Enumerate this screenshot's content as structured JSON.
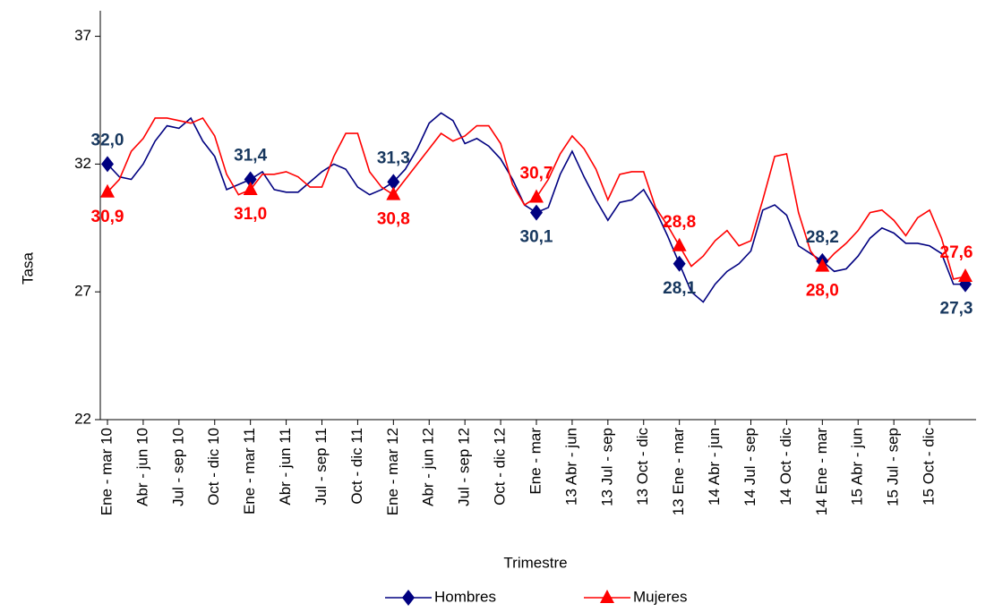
{
  "chart_data": {
    "type": "line",
    "x_label": "Trimestre",
    "y_label": "Tasa",
    "categories": [
      "Ene - mar 10",
      null,
      null,
      "Abr - jun 10",
      null,
      null,
      "Jul - sep 10",
      null,
      null,
      "Oct - dic 10",
      null,
      null,
      "Ene - mar 11",
      null,
      null,
      "Abr - jun 11",
      null,
      null,
      "Jul - sep 11",
      null,
      null,
      "Oct - dic 11",
      null,
      null,
      "Ene - mar 12",
      null,
      null,
      "Abr - jun 12",
      null,
      null,
      "Jul - sep 12",
      null,
      null,
      "Oct - dic 12",
      null,
      null,
      "Ene - mar",
      null,
      null,
      "13 Abr - jun",
      null,
      null,
      "13 Jul - sep",
      null,
      null,
      "13 Oct - dic",
      null,
      null,
      "13 Ene - mar",
      null,
      null,
      "14 Abr - jun",
      null,
      null,
      "14 Jul - sep",
      null,
      null,
      "14 Oct - dic",
      null,
      null,
      "14 Ene - mar",
      null,
      null,
      "15 Abr - jun",
      null,
      null,
      "15 Jul - sep",
      null,
      null,
      "15 Oct - dic",
      null,
      null,
      null
    ],
    "series": [
      {
        "name": "Hombres",
        "color": "#000080",
        "marker": "diamond",
        "values": [
          32.0,
          31.5,
          31.4,
          32.0,
          32.9,
          33.5,
          33.4,
          33.8,
          32.9,
          32.3,
          31.0,
          31.2,
          31.4,
          31.7,
          31.0,
          30.9,
          30.9,
          31.3,
          31.7,
          32.0,
          31.8,
          31.1,
          30.8,
          31.0,
          31.3,
          31.8,
          32.6,
          33.6,
          34.0,
          33.7,
          32.8,
          33.0,
          32.7,
          32.2,
          31.4,
          30.4,
          30.1,
          30.3,
          31.6,
          32.5,
          31.5,
          30.6,
          29.8,
          30.5,
          30.6,
          31.0,
          30.2,
          29.2,
          28.1,
          27.0,
          26.6,
          27.3,
          27.8,
          28.1,
          28.6,
          30.2,
          30.4,
          30.0,
          28.8,
          28.5,
          28.2,
          27.8,
          27.9,
          28.4,
          29.1,
          29.5,
          29.3,
          28.9,
          28.9,
          28.8,
          28.5,
          27.3,
          27.3
        ],
        "value_labels": [
          "32,0",
          null,
          null,
          null,
          null,
          null,
          null,
          null,
          null,
          null,
          null,
          null,
          "31,4",
          null,
          null,
          null,
          null,
          null,
          null,
          null,
          null,
          null,
          null,
          null,
          "31,3",
          null,
          null,
          null,
          null,
          null,
          null,
          null,
          null,
          null,
          null,
          null,
          "30,1",
          null,
          null,
          null,
          null,
          null,
          null,
          null,
          null,
          null,
          null,
          null,
          "28,1",
          null,
          null,
          null,
          null,
          null,
          null,
          null,
          null,
          null,
          null,
          null,
          "28,2",
          null,
          null,
          null,
          null,
          null,
          null,
          null,
          null,
          null,
          null,
          null,
          "27,3"
        ],
        "label_color": "#17375e"
      },
      {
        "name": "Mujeres",
        "color": "#ff0000",
        "marker": "triangle",
        "values": [
          30.9,
          31.4,
          32.5,
          33.0,
          33.8,
          33.8,
          33.7,
          33.6,
          33.8,
          33.1,
          31.6,
          30.8,
          31.0,
          31.6,
          31.6,
          31.7,
          31.5,
          31.1,
          31.1,
          32.3,
          33.2,
          33.2,
          31.7,
          31.1,
          30.8,
          31.4,
          32.0,
          32.6,
          33.2,
          32.9,
          33.1,
          33.5,
          33.5,
          32.8,
          31.2,
          30.4,
          30.7,
          31.4,
          32.4,
          33.1,
          32.6,
          31.8,
          30.6,
          31.6,
          31.7,
          31.7,
          30.3,
          29.6,
          28.8,
          28.0,
          28.4,
          29.0,
          29.4,
          28.8,
          29.0,
          30.6,
          32.3,
          32.4,
          30.1,
          28.6,
          28.0,
          28.5,
          28.9,
          29.4,
          30.1,
          30.2,
          29.8,
          29.2,
          29.9,
          30.2,
          29.1,
          27.5,
          27.6
        ],
        "value_labels": [
          "30,9",
          null,
          null,
          null,
          null,
          null,
          null,
          null,
          null,
          null,
          null,
          null,
          "31,0",
          null,
          null,
          null,
          null,
          null,
          null,
          null,
          null,
          null,
          null,
          null,
          "30,8",
          null,
          null,
          null,
          null,
          null,
          null,
          null,
          null,
          null,
          null,
          null,
          "30,7",
          null,
          null,
          null,
          null,
          null,
          null,
          null,
          null,
          null,
          null,
          null,
          "28,8",
          null,
          null,
          null,
          null,
          null,
          null,
          null,
          null,
          null,
          null,
          null,
          "28,0",
          null,
          null,
          null,
          null,
          null,
          null,
          null,
          null,
          null,
          null,
          null,
          "27,6"
        ],
        "label_color": "#ff0000"
      }
    ],
    "ylim": [
      22,
      38
    ],
    "yticks": [
      22,
      27,
      32,
      37
    ],
    "grid": false,
    "legend": "bottom"
  }
}
